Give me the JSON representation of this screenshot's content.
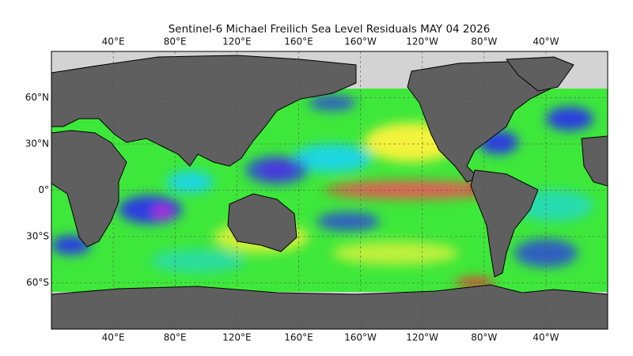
{
  "title": "Sentinel-6 Michael Freilich Sea Level Residuals MAY 04 2026",
  "lon_ticks": [
    {
      "value": 40,
      "label": "40°E"
    },
    {
      "value": 80,
      "label": "80°E"
    },
    {
      "value": 120,
      "label": "120°E"
    },
    {
      "value": 160,
      "label": "160°E"
    },
    {
      "value": -160,
      "label": "160°W"
    },
    {
      "value": -120,
      "label": "120°W"
    },
    {
      "value": -80,
      "label": "80°W"
    },
    {
      "value": -40,
      "label": "40°W"
    }
  ],
  "lat_ticks": [
    {
      "value": 60,
      "label": "60°N"
    },
    {
      "value": 30,
      "label": "30°N"
    },
    {
      "value": 0,
      "label": "0°"
    },
    {
      "value": -30,
      "label": "30°S"
    },
    {
      "value": -60,
      "label": "60°S"
    }
  ]
}
